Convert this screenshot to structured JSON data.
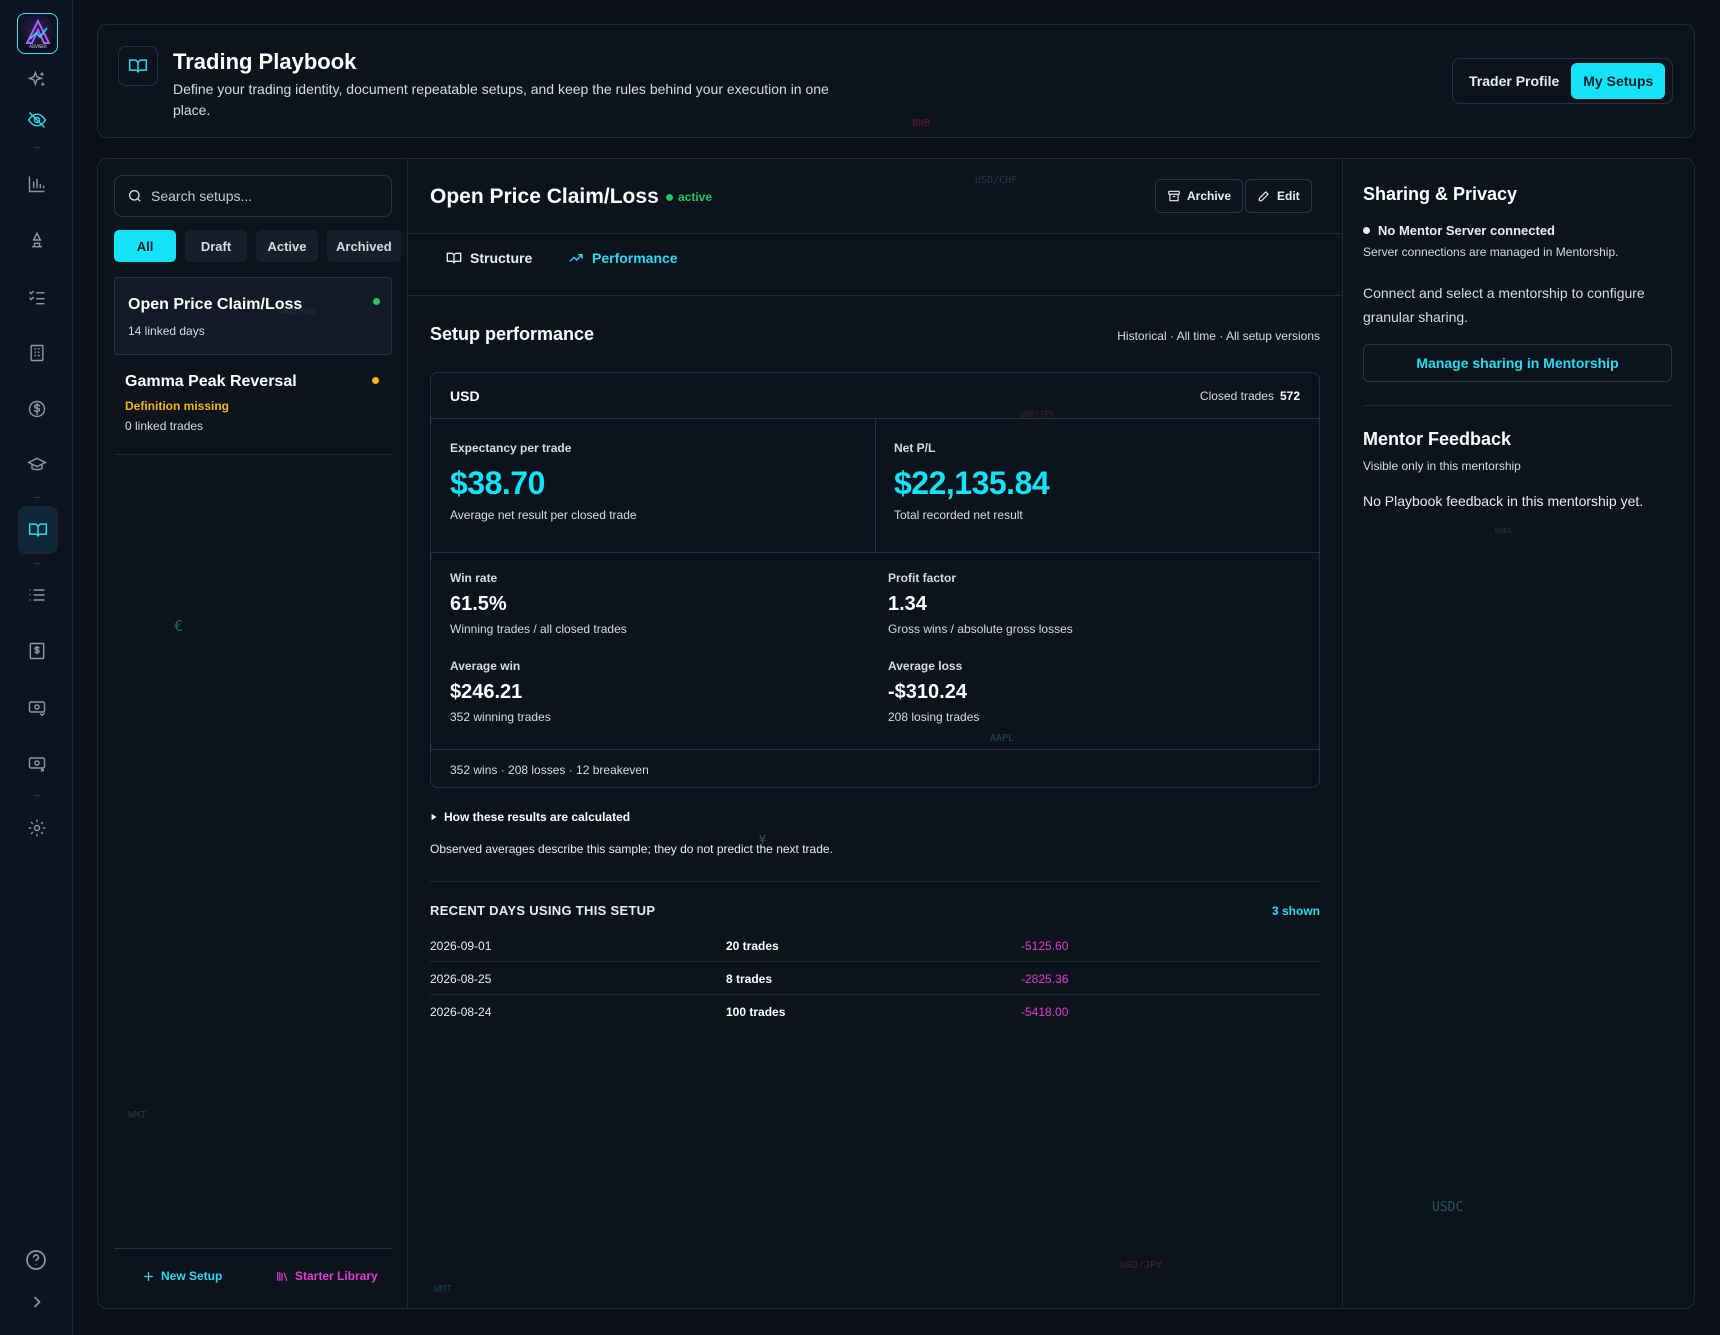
{
  "colors": {
    "accent": "#13e3f6",
    "success": "#22c55e",
    "warning": "#f5b51a",
    "loss": "#e03bd0"
  },
  "logo_text": "ADVISER",
  "rail": {
    "icons": [
      "sparkles-icon",
      "eye-off-icon",
      "chart-icon",
      "scale-icon",
      "checklist-icon",
      "building-icon",
      "dollar-icon",
      "graduation-cap-icon",
      "book-open-icon",
      "list-icon",
      "receipt-icon",
      "card-money-icon",
      "card-money-2-icon",
      "settings-icon",
      "help-icon",
      "chevron-right-icon"
    ],
    "active": "book-open-icon"
  },
  "header": {
    "title": "Trading Playbook",
    "description": "Define your trading identity, document repeatable setups, and keep the rules behind your execution in one place.",
    "tabs": [
      {
        "label": "Trader Profile",
        "active": false
      },
      {
        "label": "My Setups",
        "active": true
      }
    ]
  },
  "sidebar": {
    "search_placeholder": "Search setups...",
    "filters": [
      "All",
      "Draft",
      "Active",
      "Archived"
    ],
    "active_filter": "All",
    "setups": [
      {
        "name": "Open Price Claim/Loss",
        "meta": "14 linked days",
        "status": "active"
      },
      {
        "name": "Gamma Peak Reversal",
        "warning": "Definition missing",
        "meta": "0 linked trades",
        "status": "draft"
      }
    ],
    "new_setup": "New Setup",
    "starter_library": "Starter Library"
  },
  "detail": {
    "title": "Open Price Claim/Loss",
    "status": "active",
    "archive_label": "Archive",
    "edit_label": "Edit",
    "tabs": [
      {
        "label": "Structure",
        "active": false
      },
      {
        "label": "Performance",
        "active": true
      }
    ],
    "performance": {
      "title": "Setup performance",
      "meta": "Historical · All time · All setup versions",
      "currency": "USD",
      "closed_trades_label": "Closed trades",
      "closed_trades": "572",
      "expectancy": {
        "label": "Expectancy per trade",
        "value": "$38.70",
        "sub": "Average net result per closed trade"
      },
      "net_pl": {
        "label": "Net P/L",
        "value": "$22,135.84",
        "sub": "Total recorded net result"
      },
      "win_rate": {
        "label": "Win rate",
        "value": "61.5%",
        "sub": "Winning trades / all closed trades"
      },
      "profit_factor": {
        "label": "Profit factor",
        "value": "1.34",
        "sub": "Gross wins / absolute gross losses"
      },
      "avg_win": {
        "label": "Average win",
        "value": "$246.21",
        "sub": "352 winning trades"
      },
      "avg_loss": {
        "label": "Average loss",
        "value": "-$310.24",
        "sub": "208 losing trades"
      },
      "summary": "352 wins · 208 losses · 12 breakeven",
      "how_label": "How these results are calculated",
      "how_text": "Observed averages describe this sample; they do not predict the next trade."
    },
    "recent": {
      "title": "RECENT DAYS USING THIS SETUP",
      "shown": "3 shown",
      "rows": [
        {
          "date": "2026-09-01",
          "trades": "20 trades",
          "pl": "-5125.60"
        },
        {
          "date": "2026-08-25",
          "trades": "8 trades",
          "pl": "-2825.36"
        },
        {
          "date": "2026-08-24",
          "trades": "100 trades",
          "pl": "-5418.00"
        }
      ]
    }
  },
  "sharing": {
    "title": "Sharing & Privacy",
    "status": "No Mentor Server connected",
    "status_sub": "Server connections are managed in Mentorship.",
    "body": "Connect and select a mentorship to configure granular sharing.",
    "button": "Manage sharing in Mentorship"
  },
  "mentor_feedback": {
    "title": "Mentor Feedback",
    "sub": "Visible only in this mentorship",
    "empty": "No Playbook feedback in this mentorship yet."
  },
  "background_tickers": [
    "BNB",
    "USD/CHF",
    "AUD/USD",
    "GBP/JPY",
    "AAPL",
    "€",
    "WMT",
    "USDC",
    "USD/JPY",
    "NVDA",
    "¥"
  ]
}
